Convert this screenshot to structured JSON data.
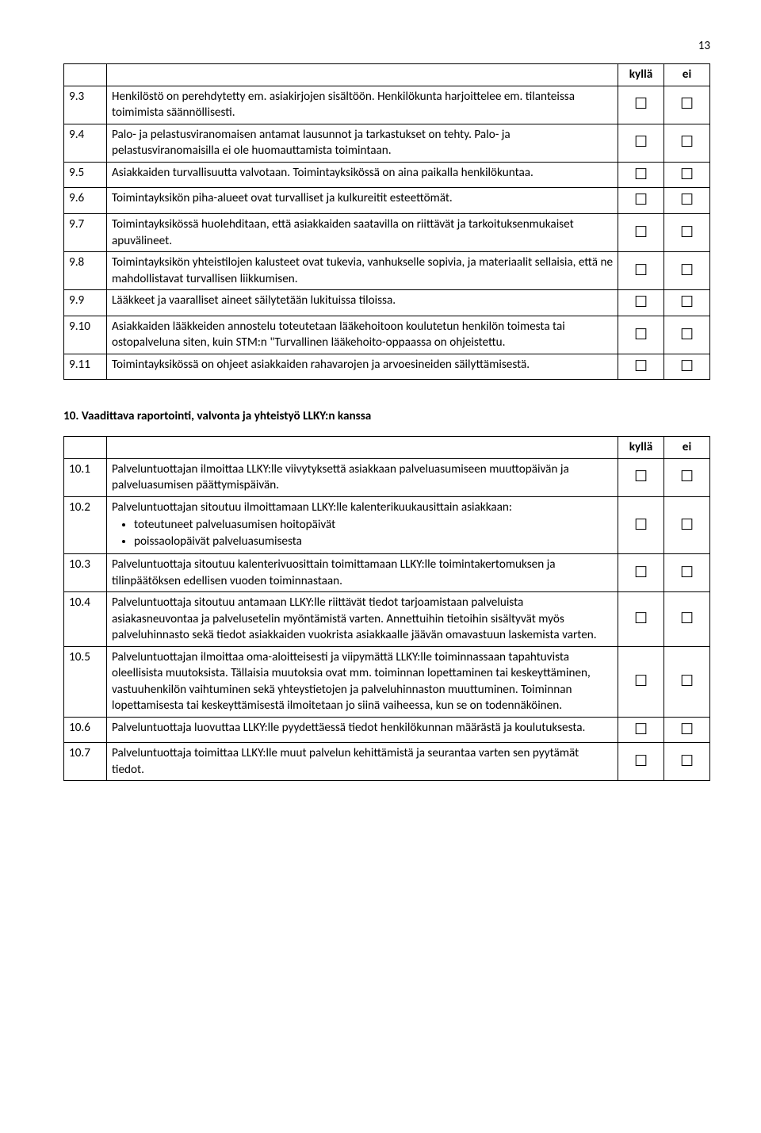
{
  "page_number": "13",
  "header": {
    "kylla": "kyllä",
    "ei": "ei"
  },
  "checkbox_glyph": "☐",
  "table1_rows": [
    {
      "num": "9.3",
      "text": "Henkilöstö on perehdytetty em. asiakirjojen sisältöön. Henkilökunta harjoittelee em. tilanteissa toimimista säännöllisesti."
    },
    {
      "num": "9.4",
      "text": "Palo- ja pelastusviranomaisen antamat lausunnot ja tarkastukset on tehty. Palo- ja pelastusviranomaisilla ei ole huomauttamista toimintaan."
    },
    {
      "num": "9.5",
      "text": "Asiakkaiden turvallisuutta valvotaan. Toimintayksikössä on aina paikalla henkilökuntaa."
    },
    {
      "num": "9.6",
      "text": "Toimintayksikön piha-alueet ovat turvalliset ja kulkureitit esteettömät."
    },
    {
      "num": "9.7",
      "text": "Toimintayksikössä huolehditaan, että asiakkaiden saatavilla on riittävät ja tarkoituksenmukaiset apuvälineet."
    },
    {
      "num": "9.8",
      "text": "Toimintayksikön yhteistilojen kalusteet ovat tukevia, vanhukselle sopivia, ja materiaalit sellaisia, että ne mahdollistavat turvallisen liikkumisen."
    },
    {
      "num": "9.9",
      "text": "Lääkkeet ja vaaralliset aineet säilytetään lukituissa tiloissa."
    },
    {
      "num": "9.10",
      "text": "Asiakkaiden lääkkeiden annostelu toteutetaan lääkehoitoon koulutetun henkilön toimesta tai ostopalveluna siten, kuin STM:n \"Turvallinen lääkehoito-oppaassa on ohjeistettu."
    },
    {
      "num": "9.11",
      "text": "Toimintayksikössä on ohjeet asiakkaiden rahavarojen ja arvoesineiden säilyttämisestä."
    }
  ],
  "section2_title": "10. Vaadittava raportointi, valvonta ja yhteistyö LLKY:n kanssa",
  "table2_rows": [
    {
      "num": "10.1",
      "text": "Palveluntuottajan ilmoittaa LLKY:lle viivytyksettä asiakkaan palveluasumiseen muuttopäivän ja palveluasumisen päättymispäivän."
    },
    {
      "num": "10.2",
      "text": "Palveluntuottajan sitoutuu ilmoittamaan LLKY:lle kalenterikuukausittain asiakkaan:",
      "bullets": [
        "toteutuneet palveluasumisen hoitopäivät",
        "poissaolopäivät palveluasumisesta"
      ]
    },
    {
      "num": "10.3",
      "text": "Palveluntuottaja sitoutuu kalenterivuosittain toimittamaan LLKY:lle toimintakertomuksen ja tilinpäätöksen edellisen vuoden toiminnastaan."
    },
    {
      "num": "10.4",
      "text": "Palveluntuottaja sitoutuu antamaan LLKY:lle riittävät tiedot tarjoamistaan palveluista asiakasneuvontaa ja palvelusetelin myöntämistä varten. Annettuihin tietoihin sisältyvät myös palveluhinnasto sekä tiedot asiakkaiden vuokrista asiakkaalle jäävän omavastuun laskemista varten."
    },
    {
      "num": "10.5",
      "text": "Palveluntuottajan ilmoittaa oma-aloitteisesti ja viipymättä LLKY:lle toiminnassaan tapahtuvista oleellisista muutoksista. Tällaisia muutoksia ovat mm. toiminnan lopettaminen tai keskeyttäminen, vastuuhenkilön vaihtuminen sekä yhteystietojen ja palveluhinnaston muuttuminen. Toiminnan lopettamisesta tai keskeyttämisestä ilmoitetaan jo siinä vaiheessa, kun se on todennäköinen."
    },
    {
      "num": "10.6",
      "text": "Palveluntuottaja luovuttaa LLKY:lle pyydettäessä tiedot henkilökunnan määrästä ja koulutuksesta."
    },
    {
      "num": "10.7",
      "text": "Palveluntuottaja toimittaa LLKY:lle muut palvelun kehittämistä ja seurantaa varten sen pyytämät tiedot."
    }
  ]
}
